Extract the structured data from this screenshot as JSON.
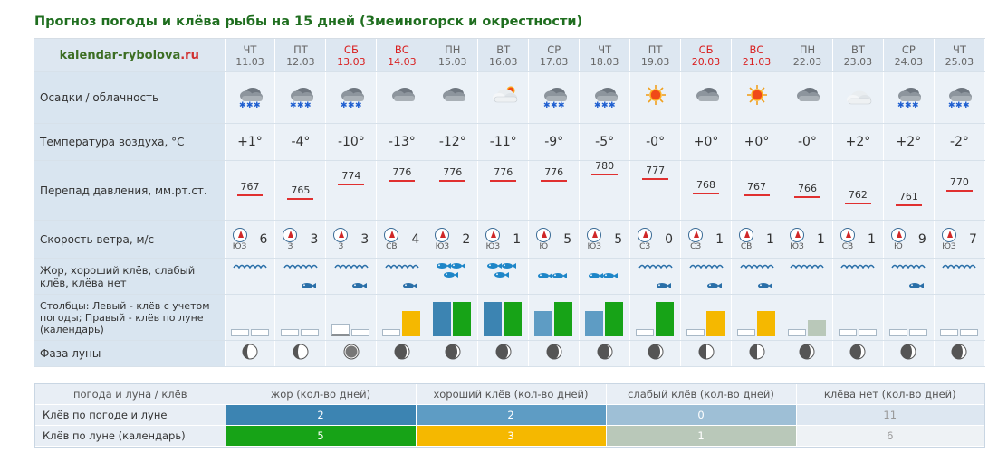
{
  "page": {
    "title": "Прогноз погоды и клёва рыбы на 15 дней (Змеиногорск и окрестности)",
    "site_name": "kalendar-rybolova",
    "site_tld": ".ru"
  },
  "row_labels": {
    "weather": "Осадки / облачность",
    "temp": "Температура воздуха, °С",
    "pressure": "Перепад давления, мм.рт.ст.",
    "wind": "Скорость ветра, м/с",
    "bite": "Жор, хороший клёв, слабый клёв, клёва нет",
    "bars": "Столбцы: Левый - клёв с учетом погоды; Правый - клёв по луне (календарь)",
    "moon": "Фаза луны"
  },
  "colors": {
    "weekend_red": "#d91f1f",
    "zhor_weather": "#3c84b2",
    "good_weather": "#5e9cc4",
    "zhor_moon": "#17a317",
    "good_moon": "#f5b800",
    "weak_moon": "#b9c8b9",
    "pressure_line": "#e03030"
  },
  "days": [
    {
      "dow": "ЧТ",
      "date": "11.03",
      "weekend": false,
      "weather": "snow-cloud-icon",
      "temp": "+1°",
      "pressure": "767",
      "wind_dir": "ЮЗ",
      "wind_speed": "6",
      "bite": "wave",
      "bar_weather": "none",
      "bar_moon": "none",
      "moon": "waning-gibbous-icon"
    },
    {
      "dow": "ПТ",
      "date": "12.03",
      "weekend": false,
      "weather": "snow-cloud-icon",
      "temp": "-4°",
      "pressure": "765",
      "wind_dir": "З",
      "wind_speed": "3",
      "bite": "fish1",
      "bar_weather": "none",
      "bar_moon": "none",
      "moon": "waning-gibbous-icon"
    },
    {
      "dow": "СБ",
      "date": "13.03",
      "weekend": true,
      "weather": "snow-cloud-icon",
      "temp": "-10°",
      "pressure": "774",
      "wind_dir": "З",
      "wind_speed": "3",
      "bite": "fish1",
      "bar_weather": "gray",
      "bar_moon": "none",
      "moon": "new-moon-icon"
    },
    {
      "dow": "ВС",
      "date": "14.03",
      "weekend": true,
      "weather": "cloud-icon",
      "temp": "-13°",
      "pressure": "776",
      "wind_dir": "СВ",
      "wind_speed": "4",
      "bite": "fish1",
      "bar_weather": "none",
      "bar_moon": "good",
      "moon": "waxing-crescent-icon"
    },
    {
      "dow": "ПН",
      "date": "15.03",
      "weekend": false,
      "weather": "cloud-icon",
      "temp": "-12°",
      "pressure": "776",
      "wind_dir": "ЮЗ",
      "wind_speed": "2",
      "bite": "fish3",
      "bar_weather": "zhor",
      "bar_moon": "zhor",
      "moon": "waxing-crescent-icon"
    },
    {
      "dow": "ВТ",
      "date": "16.03",
      "weekend": false,
      "weather": "sun-cloud-icon",
      "temp": "-11°",
      "pressure": "776",
      "wind_dir": "ЮЗ",
      "wind_speed": "1",
      "bite": "fish3",
      "bar_weather": "zhor",
      "bar_moon": "zhor",
      "moon": "waxing-crescent-icon"
    },
    {
      "dow": "СР",
      "date": "17.03",
      "weekend": false,
      "weather": "snow-cloud-icon",
      "temp": "-9°",
      "pressure": "776",
      "wind_dir": "Ю",
      "wind_speed": "5",
      "bite": "fish2",
      "bar_weather": "good",
      "bar_moon": "zhor",
      "moon": "waxing-crescent-icon"
    },
    {
      "dow": "ЧТ",
      "date": "18.03",
      "weekend": false,
      "weather": "snow-cloud-icon",
      "temp": "-5°",
      "pressure": "780",
      "wind_dir": "ЮЗ",
      "wind_speed": "5",
      "bite": "fish2",
      "bar_weather": "good",
      "bar_moon": "zhor",
      "moon": "waxing-crescent-icon"
    },
    {
      "dow": "ПТ",
      "date": "19.03",
      "weekend": false,
      "weather": "sun-icon",
      "temp": "-0°",
      "pressure": "777",
      "wind_dir": "СЗ",
      "wind_speed": "0",
      "bite": "fish1",
      "bar_weather": "none",
      "bar_moon": "zhor",
      "moon": "waxing-crescent-icon"
    },
    {
      "dow": "СБ",
      "date": "20.03",
      "weekend": true,
      "weather": "cloud-icon",
      "temp": "+0°",
      "pressure": "768",
      "wind_dir": "СЗ",
      "wind_speed": "1",
      "bite": "fish1",
      "bar_weather": "none",
      "bar_moon": "good",
      "moon": "first-quarter-icon"
    },
    {
      "dow": "ВС",
      "date": "21.03",
      "weekend": true,
      "weather": "sun-icon",
      "temp": "+0°",
      "pressure": "767",
      "wind_dir": "СВ",
      "wind_speed": "1",
      "bite": "fish1",
      "bar_weather": "none",
      "bar_moon": "good",
      "moon": "first-quarter-icon"
    },
    {
      "dow": "ПН",
      "date": "22.03",
      "weekend": false,
      "weather": "cloud-icon",
      "temp": "-0°",
      "pressure": "766",
      "wind_dir": "ЮЗ",
      "wind_speed": "1",
      "bite": "wave",
      "bar_weather": "none",
      "bar_moon": "weak",
      "moon": "waxing-gibbous-icon"
    },
    {
      "dow": "ВТ",
      "date": "23.03",
      "weekend": false,
      "weather": "light-cloud-icon",
      "temp": "+2°",
      "pressure": "762",
      "wind_dir": "СВ",
      "wind_speed": "1",
      "bite": "wave",
      "bar_weather": "none",
      "bar_moon": "none",
      "moon": "waxing-gibbous-icon"
    },
    {
      "dow": "СР",
      "date": "24.03",
      "weekend": false,
      "weather": "snow-cloud-icon",
      "temp": "+2°",
      "pressure": "761",
      "wind_dir": "Ю",
      "wind_speed": "9",
      "bite": "fish1",
      "bar_weather": "none",
      "bar_moon": "none",
      "moon": "waxing-gibbous-icon"
    },
    {
      "dow": "ЧТ",
      "date": "25.03",
      "weekend": false,
      "weather": "snow-cloud-icon",
      "temp": "-2°",
      "pressure": "770",
      "wind_dir": "ЮЗ",
      "wind_speed": "7",
      "bite": "wave",
      "bar_weather": "none",
      "bar_moon": "none",
      "moon": "waxing-gibbous-icon"
    }
  ],
  "summary": {
    "headers": [
      "погода и луна / клёв",
      "жор (кол-во дней)",
      "хороший клёв (кол-во дней)",
      "слабый клёв (кол-во дней)",
      "клёва нет (кол-во дней)"
    ],
    "rows": [
      {
        "label": "Клёв по погоде и луне",
        "values": [
          "2",
          "2",
          "0",
          "11"
        ],
        "colors": [
          "#3c84b2",
          "#5e9cc4",
          "#9ebfd6",
          "#dde7f1"
        ]
      },
      {
        "label": "Клёв по луне (календарь)",
        "values": [
          "5",
          "3",
          "1",
          "6"
        ],
        "colors": [
          "#17a317",
          "#f5b800",
          "#b9c8b9",
          "#eef2f5"
        ]
      }
    ]
  }
}
